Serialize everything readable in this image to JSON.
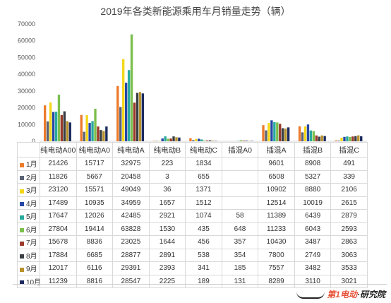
{
  "chart_data": {
    "type": "bar",
    "title": "2019年各类新能源乘用车月销量走势（辆）",
    "categories": [
      "纯电动A00",
      "纯电动A0",
      "纯电动A",
      "纯电动B",
      "纯电动C",
      "插混A0",
      "插混A",
      "插混B",
      "插混C"
    ],
    "ylim": [
      0,
      70000
    ],
    "yticks": [
      "0",
      "10000",
      "20000",
      "30000",
      "40000",
      "50000",
      "60000",
      "70000"
    ],
    "grid": false,
    "legend_placement": "data table",
    "series": [
      {
        "name": "1月",
        "color": "#ec7b2c",
        "values": [
          21426,
          15717,
          32975,
          223,
          1834,
          null,
          9601,
          8908,
          491
        ],
        "labels": [
          "21426",
          "15717",
          "32975",
          "223",
          "1834",
          "",
          "9601",
          "8908",
          "491"
        ]
      },
      {
        "name": "2月",
        "color": "#5b6476",
        "values": [
          11826,
          5667,
          20458,
          3,
          655,
          null,
          6508,
          5327,
          339
        ],
        "labels": [
          "11826",
          "5667",
          "20458",
          "3",
          "655",
          "",
          "6508",
          "5327",
          "339"
        ]
      },
      {
        "name": "3月",
        "color": "#f4d71a",
        "values": [
          23120,
          15571,
          49049,
          36,
          1371,
          null,
          10902,
          8880,
          2106
        ],
        "labels": [
          "23120",
          "15571",
          "49049",
          "36",
          "1371",
          "",
          "10902",
          "8880",
          "2106"
        ]
      },
      {
        "name": "4月",
        "color": "#2647a6",
        "values": [
          17489,
          10935,
          34959,
          1657,
          1512,
          null,
          12514,
          10019,
          2615
        ],
        "labels": [
          "17489",
          "10935",
          "34959",
          "1657",
          "1512",
          "",
          "12514",
          "10019",
          "2615"
        ]
      },
      {
        "name": "5月",
        "color": "#28a99d",
        "values": [
          17647,
          12026,
          42485,
          2921,
          1074,
          58,
          11389,
          6439,
          2879
        ],
        "labels": [
          "17647",
          "12026",
          "42485",
          "2921",
          "1074",
          "58",
          "11389",
          "6439",
          "2879"
        ]
      },
      {
        "name": "6月",
        "color": "#7bbf4d",
        "values": [
          27804,
          19414,
          63828,
          1530,
          435,
          648,
          11233,
          6043,
          2593
        ],
        "labels": [
          "27804",
          "19414",
          "63828",
          "1530",
          "435",
          "648",
          "11233",
          "6043",
          "2593"
        ]
      },
      {
        "name": "7月",
        "color": "#9b3a2a",
        "values": [
          15678,
          8836,
          23025,
          1644,
          456,
          357,
          10430,
          3487,
          2863
        ],
        "labels": [
          "15678",
          "8836",
          "23025",
          "1644",
          "456",
          "357",
          "10430",
          "3487",
          "2863"
        ]
      },
      {
        "name": "8月",
        "color": "#3a3f44",
        "values": [
          17884,
          6685,
          28877,
          2891,
          538,
          354,
          7800,
          2749,
          3063
        ],
        "labels": [
          "17884",
          "6685",
          "28877",
          "2891",
          "538",
          "354",
          "7800",
          "2749",
          "3063"
        ]
      },
      {
        "name": "9月",
        "color": "#b8912a",
        "values": [
          12017,
          6116,
          29391,
          2393,
          341,
          185,
          7557,
          3482,
          3533
        ],
        "labels": [
          "12017",
          "6116",
          "29391",
          "2393",
          "341",
          "185",
          "7557",
          "3482",
          "3533"
        ]
      },
      {
        "name": "10月",
        "color": "#1c2a5e",
        "values": [
          11239,
          8816,
          28547,
          2225,
          189,
          131,
          8289,
          3110,
          3021
        ],
        "labels": [
          "11239",
          "8816",
          "28547",
          "2225",
          "189",
          "131",
          "8289",
          "3110",
          "3021"
        ]
      }
    ]
  },
  "logo": {
    "brand_a": "第1电动",
    "separator": "·",
    "brand_b": "研究院"
  }
}
